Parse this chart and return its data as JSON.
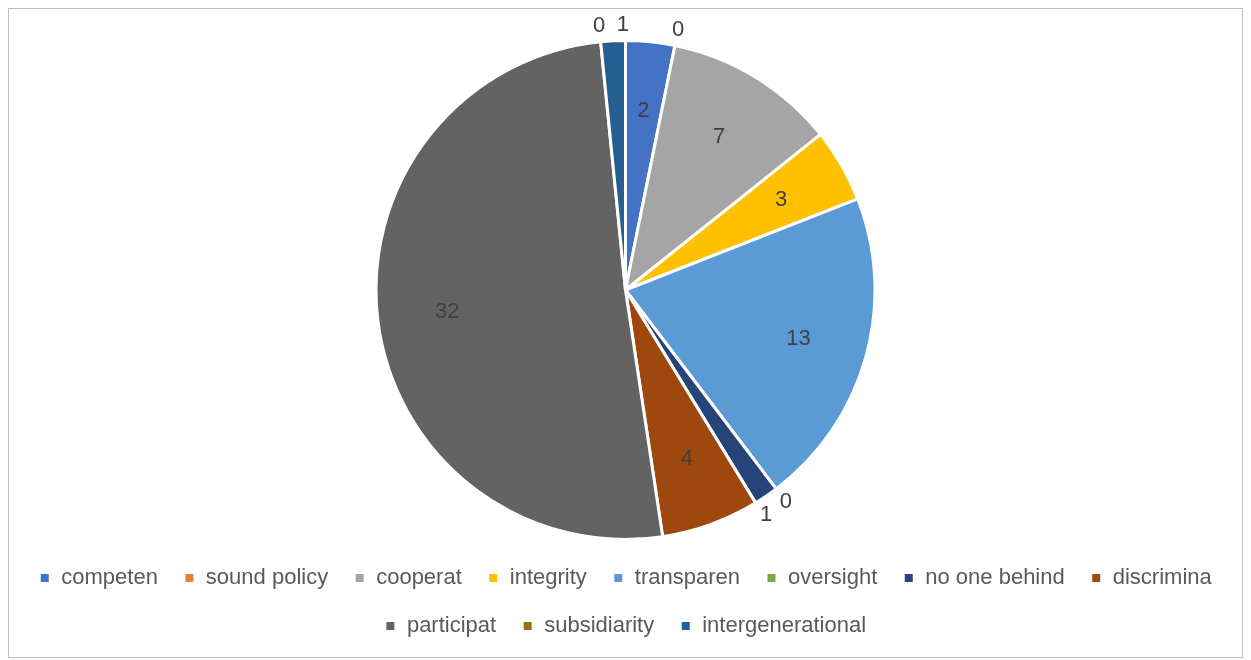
{
  "chart_data": {
    "type": "pie",
    "categories": [
      "competen",
      "sound policy",
      "cooperat",
      "integrity",
      "transparen",
      "oversight",
      "no one behind",
      "discrimina",
      "participat",
      "subsidiarity",
      "intergenerational"
    ],
    "values": [
      2,
      0,
      7,
      3,
      13,
      0,
      1,
      4,
      32,
      0,
      1
    ],
    "colors": [
      "#4472c4",
      "#ed7d31",
      "#a5a5a5",
      "#ffc000",
      "#5b9bd5",
      "#70ad47",
      "#264478",
      "#9e480e",
      "#636363",
      "#997300",
      "#255e91"
    ],
    "value_labels": [
      "2",
      "0",
      "7",
      "3",
      "13",
      "0",
      "1",
      "4",
      "32",
      "0",
      "1"
    ],
    "legend": "bottom"
  }
}
